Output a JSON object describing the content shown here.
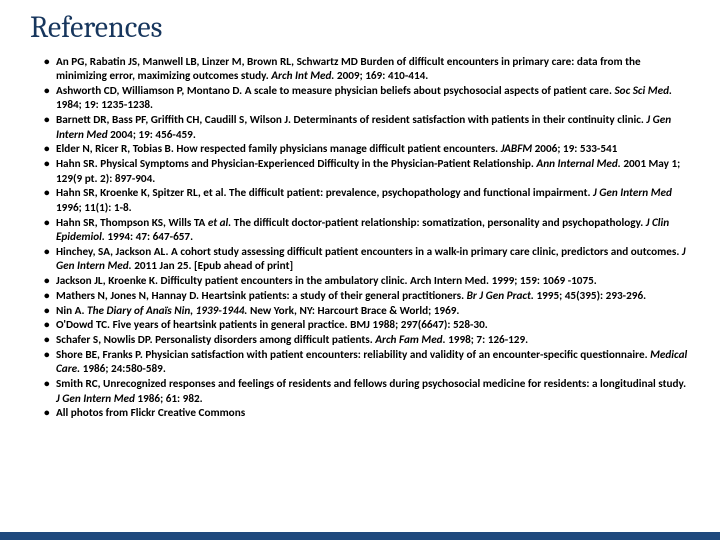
{
  "title": "References",
  "title_color": "#17365d",
  "title_fontsize": 30,
  "body_fontsize": 11.2,
  "body_color": "#000000",
  "accent_bar_color": "#1f497d",
  "background_color": "#ffffff",
  "references": [
    {
      "pre": "An PG, Rabatin JS, Manwell LB, Linzer M, Brown RL, Schwartz MD Burden of difficult encounters in primary care: data from the minimizing error, maximizing outcomes study. ",
      "ital": "Arch Int Med. ",
      "post": "2009; 169: 410-414."
    },
    {
      "pre": "Ashworth CD, Williamson P, Montano D. A scale to measure physician beliefs about psychosocial aspects of patient care. ",
      "ital": "Soc Sci Med. ",
      "post": "1984; 19: 1235-1238."
    },
    {
      "pre": "Barnett DR, Bass PF, Griffith CH, Caudill S, Wilson J. Determinants of resident satisfaction with patients in their continuity clinic. ",
      "ital": "J Gen Intern Med ",
      "post": "2004; 19: 456-459."
    },
    {
      "pre": "Elder N, Ricer R, Tobias B. How respected family physicians manage difficult patient encounters. ",
      "ital": "JABFM ",
      "post": "2006; 19: 533-541"
    },
    {
      "pre": "Hahn SR. Physical Symptoms and Physician-Experienced Difficulty in the Physician-Patient Relationship. ",
      "ital": "Ann Internal Med. ",
      "post": "2001 May 1; 129(9 pt. 2): 897-904."
    },
    {
      "pre": "Hahn SR, Kroenke K, Spitzer RL, et al. The difficult patient: prevalence, psychopathology and functional impairment. ",
      "ital": "J Gen Intern Med ",
      "post": "1996; 11(1): 1-8."
    },
    {
      "pre": "Hahn SR, Thompson KS, Wills TA ",
      "ital": "et al.",
      "post": " The difficult doctor-patient relationship: somatization, personality and psychopathology. ",
      "ital2": "J Clin Epidemiol. ",
      "post2": "1994: 47: 647-657."
    },
    {
      "pre": "Hinchey, SA, Jackson AL. A cohort study assessing difficult patient encounters in a walk-in primary care clinic, predictors and outcomes. ",
      "ital": "J Gen Intern Med. ",
      "post": "2011 Jan 25. [Epub ahead of print]"
    },
    {
      "pre": "Jackson JL, Kroenke K. Difficulty patient encounters in the ambulatory clinic.  Arch Intern Med. 1999; 159: 1069 -1075.",
      "ital": "",
      "post": ""
    },
    {
      "pre": "Mathers N, Jones N, Hannay D. Heartsink patients: a study of their general practitioners. ",
      "ital": "Br J Gen Pract. ",
      "post": "1995; 45(395): 293-296."
    },
    {
      "pre": "Nin A. ",
      "ital": "The Diary of Anaïs Nin, 1939-1944. ",
      "post": "New York, NY: Harcourt Brace & World; 1969."
    },
    {
      "pre": "O'Dowd TC. Five years of heartsink patients in general practice. BMJ 1988; 297(6647): 528-30.",
      "ital": "",
      "post": ""
    },
    {
      "pre": "Schafer S, Nowlis DP. Personalisty disorders among difficult patients. ",
      "ital": "Arch Fam Med. ",
      "post": "1998; 7: 126-129."
    },
    {
      "pre": "Shore BE, Franks P. Physician satisfaction with patient encounters: reliability and validity of an encounter-specific questionnaire. ",
      "ital": "Medical Care. ",
      "post": "1986; 24:580-589."
    },
    {
      "pre": "Smith RC, Unrecognized responses and feelings of residents and fellows during psychosocial medicine for residents: a longitudinal study. ",
      "ital": "J Gen Intern Med ",
      "post": "1986; 61: 982."
    },
    {
      "pre": "All photos from Flickr Creative Commons",
      "ital": "",
      "post": ""
    }
  ]
}
